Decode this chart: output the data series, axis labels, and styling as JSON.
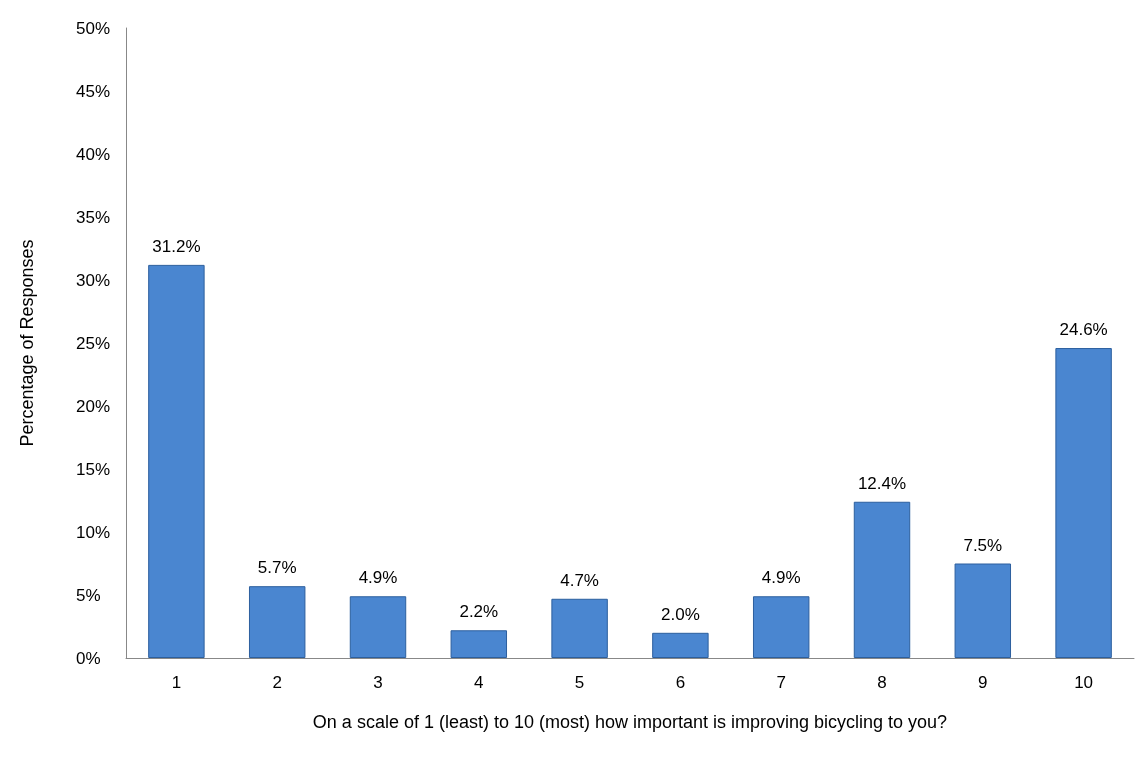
{
  "chart_data": {
    "type": "bar",
    "xlabel": "On a scale of 1 (least) to 10 (most) how important is improving bicycling to you?",
    "ylabel": "Percentage of Responses",
    "categories": [
      "1",
      "2",
      "3",
      "4",
      "5",
      "6",
      "7",
      "8",
      "9",
      "10"
    ],
    "values": [
      31.2,
      5.7,
      4.9,
      2.2,
      4.7,
      2.0,
      4.9,
      12.4,
      7.5,
      24.6
    ],
    "value_labels": [
      "31.2%",
      "5.7%",
      "4.9%",
      "2.2%",
      "4.7%",
      "2.0%",
      "4.9%",
      "12.4%",
      "7.5%",
      "24.6%"
    ],
    "color": "#4a86d0",
    "ylim": [
      0,
      50
    ],
    "yticks": [
      {
        "value": 0,
        "label": "0%"
      },
      {
        "value": 5,
        "label": "5%"
      },
      {
        "value": 10,
        "label": "10%"
      },
      {
        "value": 15,
        "label": "15%"
      },
      {
        "value": 20,
        "label": "20%"
      },
      {
        "value": 25,
        "label": "25%"
      },
      {
        "value": 30,
        "label": "30%"
      },
      {
        "value": 35,
        "label": "35%"
      },
      {
        "value": 40,
        "label": "40%"
      },
      {
        "value": 45,
        "label": "45%"
      },
      {
        "value": 50,
        "label": "50%"
      }
    ],
    "grid": false
  }
}
